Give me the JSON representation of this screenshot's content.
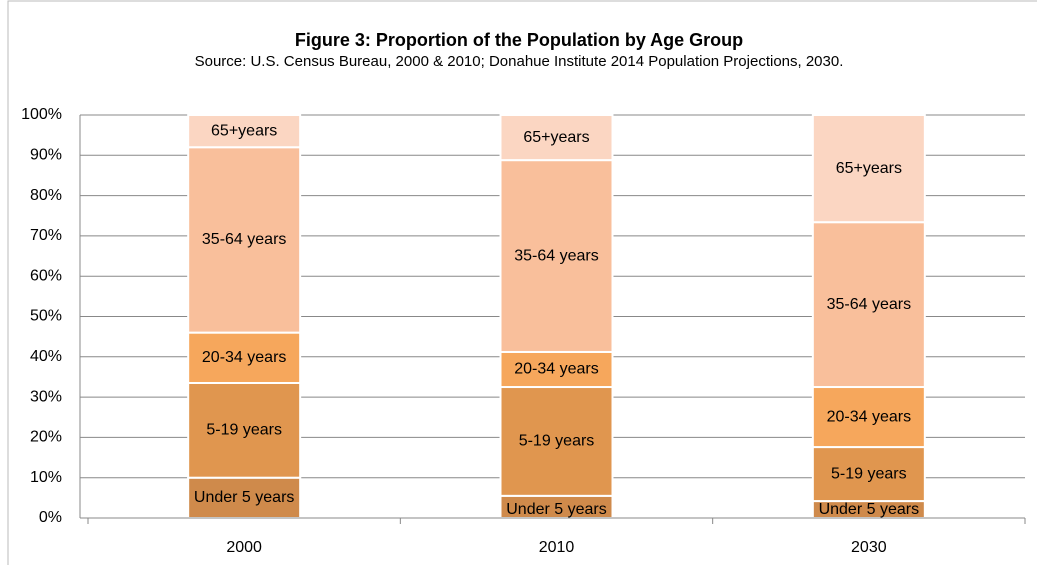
{
  "chart_data": {
    "type": "stacked_bar",
    "title": "Figure 3:  Proportion of the Population by Age Group",
    "subtitle": "Source:  U.S. Census Bureau, 2000 & 2010;  Donahue Institute 2014 Population Projections, 2030.",
    "categories": [
      "2000",
      "2010",
      "2030"
    ],
    "series": [
      {
        "name": "Under 5 years",
        "color": "#cf8a4b",
        "values": [
          10,
          5.5,
          4.2
        ]
      },
      {
        "name": "5-19 years",
        "color": "#e0964f",
        "values": [
          23.5,
          27,
          13.4
        ]
      },
      {
        "name": "20-34 years",
        "color": "#f6a75c",
        "values": [
          12.5,
          8.7,
          14.9
        ]
      },
      {
        "name": "35-64 years",
        "color": "#f9bf9b",
        "values": [
          46,
          47.6,
          40.9
        ]
      },
      {
        "name": "65+years",
        "color": "#fbd6c2",
        "values": [
          8,
          11.2,
          26.6
        ]
      }
    ],
    "ylim": [
      0,
      100
    ],
    "yticks": [
      {
        "value": 0,
        "label": "0%"
      },
      {
        "value": 10,
        "label": "10%"
      },
      {
        "value": 20,
        "label": "20%"
      },
      {
        "value": 30,
        "label": "30%"
      },
      {
        "value": 40,
        "label": "40%"
      },
      {
        "value": 50,
        "label": "50%"
      },
      {
        "value": 60,
        "label": "60%"
      },
      {
        "value": 70,
        "label": "70%"
      },
      {
        "value": 80,
        "label": "80%"
      },
      {
        "value": 90,
        "label": "90%"
      },
      {
        "value": 100,
        "label": "100%"
      }
    ],
    "grid": true
  }
}
